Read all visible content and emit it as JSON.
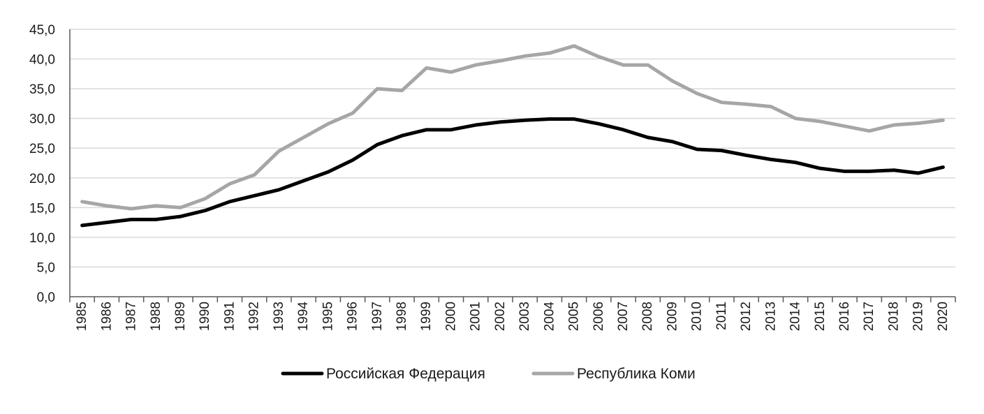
{
  "chart_data": {
    "type": "line",
    "title": "",
    "xlabel": "",
    "ylabel": "",
    "categories": [
      "1985",
      "1986",
      "1987",
      "1988",
      "1989",
      "1990",
      "1991",
      "1992",
      "1993",
      "1994",
      "1995",
      "1996",
      "1997",
      "1998",
      "1999",
      "2000",
      "2001",
      "2002",
      "2003",
      "2004",
      "2005",
      "2006",
      "2007",
      "2008",
      "2009",
      "2010",
      "2011",
      "2012",
      "2013",
      "2014",
      "2015",
      "2016",
      "2017",
      "2018",
      "2019",
      "2020"
    ],
    "ylim": [
      0,
      45
    ],
    "y_ticks": [
      "0,0",
      "5,0",
      "10,0",
      "15,0",
      "20,0",
      "25,0",
      "30,0",
      "35,0",
      "40,0",
      "45,0"
    ],
    "grid": true,
    "legend_position": "bottom",
    "series": [
      {
        "name": "Российская Федерация",
        "color": "#000000",
        "values": [
          12.0,
          12.5,
          13.0,
          13.0,
          13.5,
          14.5,
          16.0,
          17.0,
          18.0,
          19.5,
          21.0,
          23.0,
          25.6,
          27.1,
          28.1,
          28.1,
          28.9,
          29.4,
          29.7,
          29.9,
          29.9,
          29.1,
          28.1,
          26.8,
          26.1,
          24.8,
          24.6,
          23.8,
          23.1,
          22.6,
          21.6,
          21.1,
          21.1,
          21.3,
          20.8,
          21.8
        ]
      },
      {
        "name": "Республика Коми",
        "color": "#a6a6a6",
        "values": [
          16.0,
          15.3,
          14.8,
          15.3,
          15.0,
          16.5,
          19.0,
          20.5,
          24.5,
          26.8,
          29.1,
          30.9,
          35.0,
          34.7,
          38.5,
          37.8,
          39.0,
          39.7,
          40.5,
          41.0,
          42.2,
          40.4,
          39.0,
          39.0,
          36.3,
          34.2,
          32.7,
          32.4,
          32.0,
          30.0,
          29.5,
          28.7,
          27.9,
          28.9,
          29.2,
          29.7
        ]
      }
    ]
  }
}
